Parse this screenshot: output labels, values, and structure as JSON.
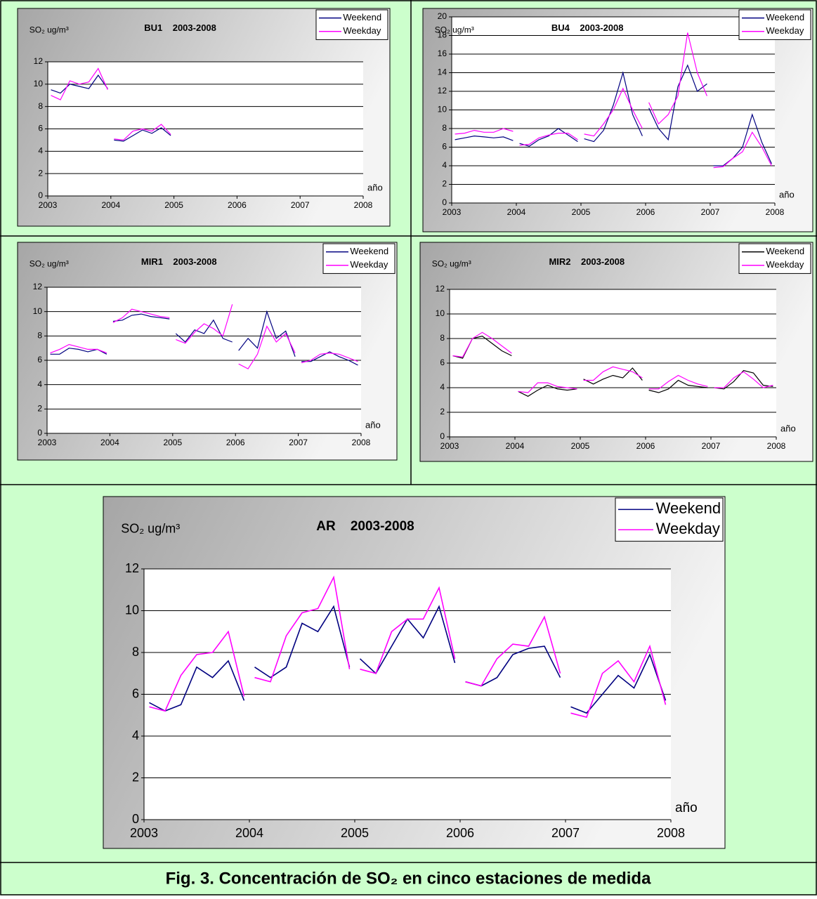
{
  "caption": "Fig. 3. Concentración de SO₂ en cinco estaciones de medida",
  "chart_data": [
    {
      "type": "line",
      "title": "BU1    2003-2008",
      "y_label": "SO₂ ug/m³",
      "x_label": "año",
      "legend": "upper right",
      "grid": true,
      "x": [
        2003.05,
        2003.2,
        2003.35,
        2003.5,
        2003.65,
        2003.8,
        2003.95,
        2004,
        2004.05,
        2004.2,
        2004.35,
        2004.5,
        2004.65,
        2004.8,
        2004.95,
        2005,
        2005.05,
        2005.2,
        2005.35,
        2005.5,
        2005.65,
        2005.8,
        2005.95,
        2006,
        2006.05,
        2006.2,
        2006.35,
        2006.5,
        2006.65,
        2006.8,
        2006.95,
        2007,
        2007.05,
        2007.2,
        2007.35,
        2007.5,
        2007.65,
        2007.8,
        2007.95
      ],
      "xlim": [
        2003,
        2008
      ],
      "xticks": [
        2003,
        2004,
        2005,
        2006,
        2007,
        2008
      ],
      "ylim": [
        0,
        12
      ],
      "yticks": [
        0,
        2,
        4,
        6,
        8,
        10,
        12
      ],
      "series": [
        {
          "name": "Weekend",
          "color": "#000080",
          "values": [
            9.5,
            9.2,
            10.0,
            9.8,
            9.6,
            10.8,
            9.6,
            null,
            5.0,
            4.9,
            5.4,
            5.9,
            5.6,
            6.1,
            5.4,
            null,
            null,
            null,
            null,
            null,
            null,
            null,
            null,
            null,
            null,
            null,
            null,
            null,
            null,
            null,
            null,
            null,
            null,
            null,
            null,
            null,
            null,
            null,
            null
          ]
        },
        {
          "name": "Weekday",
          "color": "#ff00ff",
          "values": [
            9.0,
            8.6,
            10.3,
            10.0,
            10.2,
            11.4,
            9.5,
            null,
            5.1,
            5.0,
            5.8,
            6.0,
            5.8,
            6.4,
            5.5,
            null,
            null,
            null,
            null,
            null,
            null,
            null,
            null,
            null,
            null,
            null,
            null,
            null,
            null,
            null,
            null,
            null,
            null,
            null,
            null,
            null,
            null,
            null,
            null
          ]
        }
      ]
    },
    {
      "type": "line",
      "title": "BU4    2003-2008",
      "y_label": "SO₂ ug/m³",
      "x_label": "año",
      "legend": "upper right",
      "grid": true,
      "x": [
        2003.05,
        2003.2,
        2003.35,
        2003.5,
        2003.65,
        2003.8,
        2003.95,
        2004,
        2004.05,
        2004.2,
        2004.35,
        2004.5,
        2004.65,
        2004.8,
        2004.95,
        2005,
        2005.05,
        2005.2,
        2005.35,
        2005.5,
        2005.65,
        2005.8,
        2005.95,
        2006,
        2006.05,
        2006.2,
        2006.35,
        2006.5,
        2006.65,
        2006.8,
        2006.95,
        2007,
        2007.05,
        2007.2,
        2007.35,
        2007.5,
        2007.65,
        2007.8,
        2007.95
      ],
      "xlim": [
        2003,
        2008
      ],
      "xticks": [
        2003,
        2004,
        2005,
        2006,
        2007,
        2008
      ],
      "ylim": [
        0,
        20
      ],
      "yticks": [
        0,
        2,
        4,
        6,
        8,
        10,
        12,
        14,
        16,
        18,
        20
      ],
      "series": [
        {
          "name": "Weekend",
          "color": "#000080",
          "values": [
            6.8,
            7.0,
            7.2,
            7.1,
            7.0,
            7.1,
            6.7,
            null,
            6.4,
            6.1,
            6.8,
            7.2,
            8.0,
            7.3,
            6.6,
            null,
            6.9,
            6.6,
            7.8,
            10.5,
            14.0,
            9.5,
            7.2,
            null,
            10.2,
            8.0,
            6.8,
            12.5,
            14.8,
            12.0,
            12.8,
            null,
            4.0,
            4.0,
            4.8,
            6.0,
            9.5,
            6.5,
            4.2
          ]
        },
        {
          "name": "Weekday",
          "color": "#ff00ff",
          "values": [
            7.4,
            7.5,
            7.8,
            7.6,
            7.6,
            8.0,
            7.7,
            null,
            6.2,
            6.3,
            7.0,
            7.3,
            7.5,
            7.5,
            6.8,
            null,
            7.4,
            7.2,
            8.5,
            10.0,
            12.3,
            10.0,
            8.0,
            null,
            10.8,
            8.5,
            9.5,
            11.5,
            18.3,
            14.0,
            11.5,
            null,
            3.8,
            3.9,
            4.8,
            5.5,
            7.6,
            6.0,
            4.0
          ]
        }
      ]
    },
    {
      "type": "line",
      "title": "MIR1    2003-2008",
      "y_label": "SO₂ ug/m³",
      "x_label": "año",
      "legend": "upper right",
      "grid": true,
      "x": [
        2003.05,
        2003.2,
        2003.35,
        2003.5,
        2003.65,
        2003.8,
        2003.95,
        2004,
        2004.05,
        2004.2,
        2004.35,
        2004.5,
        2004.65,
        2004.8,
        2004.95,
        2005,
        2005.05,
        2005.2,
        2005.35,
        2005.5,
        2005.65,
        2005.8,
        2005.95,
        2006,
        2006.05,
        2006.2,
        2006.35,
        2006.5,
        2006.65,
        2006.8,
        2006.95,
        2007,
        2007.05,
        2007.2,
        2007.35,
        2007.5,
        2007.65,
        2007.8,
        2007.95
      ],
      "xlim": [
        2003,
        2008
      ],
      "xticks": [
        2003,
        2004,
        2005,
        2006,
        2007,
        2008
      ],
      "ylim": [
        0,
        12
      ],
      "yticks": [
        0,
        2,
        4,
        6,
        8,
        10,
        12
      ],
      "series": [
        {
          "name": "Weekend",
          "color": "#000080",
          "values": [
            6.5,
            6.5,
            7.0,
            6.9,
            6.7,
            6.9,
            6.5,
            null,
            9.2,
            9.3,
            9.7,
            9.8,
            9.6,
            9.5,
            9.4,
            null,
            8.2,
            7.5,
            8.5,
            8.2,
            9.3,
            7.8,
            7.5,
            null,
            6.8,
            7.8,
            7.0,
            10.0,
            7.8,
            8.4,
            6.3,
            null,
            5.9,
            5.9,
            6.3,
            6.7,
            6.3,
            6.0,
            5.6
          ]
        },
        {
          "name": "Weekday",
          "color": "#ff00ff",
          "values": [
            6.6,
            6.9,
            7.3,
            7.1,
            6.9,
            6.9,
            6.6,
            null,
            9.1,
            9.5,
            10.2,
            10.0,
            9.8,
            9.6,
            9.5,
            null,
            7.7,
            7.4,
            8.3,
            9.0,
            8.6,
            8.0,
            10.6,
            null,
            5.7,
            5.3,
            6.5,
            8.8,
            7.5,
            8.2,
            6.6,
            null,
            5.8,
            6.0,
            6.5,
            6.6,
            6.5,
            6.2,
            5.9
          ]
        }
      ]
    },
    {
      "type": "line",
      "title": "MIR2    2003-2008",
      "y_label": "SO₂ ug/m³",
      "x_label": "año",
      "legend": "upper right",
      "grid": true,
      "x": [
        2003.05,
        2003.2,
        2003.35,
        2003.5,
        2003.65,
        2003.8,
        2003.95,
        2004,
        2004.05,
        2004.2,
        2004.35,
        2004.5,
        2004.65,
        2004.8,
        2004.95,
        2005,
        2005.05,
        2005.2,
        2005.35,
        2005.5,
        2005.65,
        2005.8,
        2005.95,
        2006,
        2006.05,
        2006.2,
        2006.35,
        2006.5,
        2006.65,
        2006.8,
        2006.95,
        2007,
        2007.05,
        2007.2,
        2007.35,
        2007.5,
        2007.65,
        2007.8,
        2007.95
      ],
      "xlim": [
        2003,
        2008
      ],
      "xticks": [
        2003,
        2004,
        2005,
        2006,
        2007,
        2008
      ],
      "ylim": [
        0,
        12
      ],
      "yticks": [
        0,
        2,
        4,
        6,
        8,
        10,
        12
      ],
      "series": [
        {
          "name": "Weekend",
          "color": "#000000",
          "values": [
            6.6,
            6.4,
            8.0,
            8.2,
            7.6,
            7.0,
            6.6,
            null,
            3.7,
            3.3,
            3.8,
            4.2,
            3.9,
            3.8,
            3.9,
            null,
            4.7,
            4.3,
            4.7,
            5.0,
            4.8,
            5.6,
            4.6,
            null,
            3.8,
            3.6,
            3.9,
            4.6,
            4.2,
            4.1,
            4.0,
            null,
            4.0,
            3.9,
            4.5,
            5.4,
            5.2,
            4.2,
            4.1
          ]
        },
        {
          "name": "Weekday",
          "color": "#ff00ff",
          "values": [
            6.6,
            6.5,
            8.0,
            8.5,
            8.0,
            7.4,
            6.8,
            null,
            3.7,
            3.6,
            4.4,
            4.4,
            4.1,
            4.0,
            3.9,
            null,
            4.6,
            4.6,
            5.3,
            5.7,
            5.5,
            5.3,
            4.8,
            null,
            3.9,
            3.9,
            4.5,
            5.0,
            4.6,
            4.3,
            4.1,
            null,
            4.0,
            4.0,
            4.8,
            5.3,
            4.7,
            4.0,
            4.2
          ]
        }
      ]
    },
    {
      "type": "line",
      "title": "AR    2003-2008",
      "y_label": "SO₂ ug/m³",
      "x_label": "año",
      "legend": "upper right",
      "grid": true,
      "x": [
        2003.05,
        2003.2,
        2003.35,
        2003.5,
        2003.65,
        2003.8,
        2003.95,
        2004,
        2004.05,
        2004.2,
        2004.35,
        2004.5,
        2004.65,
        2004.8,
        2004.95,
        2005,
        2005.05,
        2005.2,
        2005.35,
        2005.5,
        2005.65,
        2005.8,
        2005.95,
        2006,
        2006.05,
        2006.2,
        2006.35,
        2006.5,
        2006.65,
        2006.8,
        2006.95,
        2007,
        2007.05,
        2007.2,
        2007.35,
        2007.5,
        2007.65,
        2007.8,
        2007.95
      ],
      "xlim": [
        2003,
        2008
      ],
      "xticks": [
        2003,
        2004,
        2005,
        2006,
        2007,
        2008
      ],
      "ylim": [
        0,
        12
      ],
      "yticks": [
        0,
        2,
        4,
        6,
        8,
        10,
        12
      ],
      "series": [
        {
          "name": "Weekend",
          "color": "#000080",
          "values": [
            5.6,
            5.2,
            5.5,
            7.3,
            6.8,
            7.6,
            5.7,
            null,
            7.3,
            6.8,
            7.3,
            9.4,
            9.0,
            10.2,
            7.3,
            null,
            7.7,
            7.0,
            8.3,
            9.6,
            8.7,
            10.2,
            7.5,
            null,
            6.6,
            6.4,
            6.8,
            7.9,
            8.2,
            8.3,
            6.8,
            null,
            5.4,
            5.1,
            6.0,
            6.9,
            6.3,
            7.9,
            5.7
          ]
        },
        {
          "name": "Weekday",
          "color": "#ff00ff",
          "values": [
            5.4,
            5.2,
            6.9,
            7.9,
            8.0,
            9.0,
            5.9,
            null,
            6.8,
            6.6,
            8.8,
            9.9,
            10.1,
            11.6,
            7.2,
            null,
            7.2,
            7.0,
            9.0,
            9.6,
            9.6,
            11.1,
            7.7,
            null,
            6.6,
            6.4,
            7.7,
            8.4,
            8.3,
            9.7,
            7.0,
            null,
            5.1,
            4.9,
            7.0,
            7.6,
            6.6,
            8.3,
            5.5
          ]
        }
      ]
    }
  ]
}
